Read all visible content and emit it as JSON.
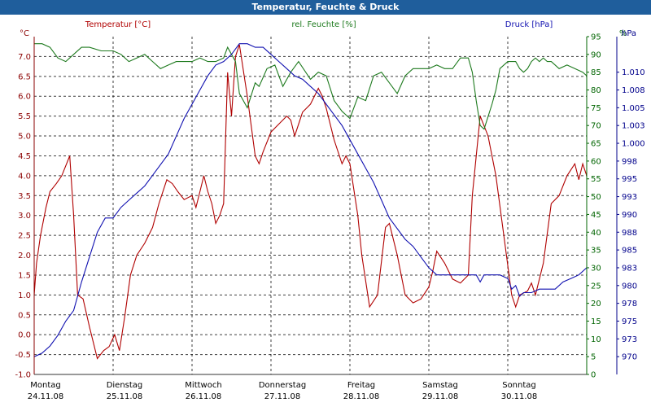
{
  "chart_data": {
    "type": "line",
    "title": "Temperatur, Feuchte & Druck",
    "x_labels": [
      {
        "day": "Montag",
        "date": "24.11.08"
      },
      {
        "day": "Dienstag",
        "date": "25.11.08"
      },
      {
        "day": "Mittwoch",
        "date": "26.11.08"
      },
      {
        "day": "Donnerstag",
        "date": "27.11.08"
      },
      {
        "day": "Freitag",
        "date": "28.11.08"
      },
      {
        "day": "Samstag",
        "date": "29.11.08"
      },
      {
        "day": "Sonntag",
        "date": "30.11.08"
      }
    ],
    "x_range_days": [
      0,
      7
    ],
    "grid": true,
    "axes": {
      "temperature": {
        "unit_label": "°C",
        "side": "left",
        "color": "#8b0000",
        "ylim": [
          -1.0,
          7.5
        ],
        "ticks": [
          "-1.0",
          "-0.5",
          "0.0",
          "0.5",
          "1.0",
          "1.5",
          "2.0",
          "2.5",
          "3.0",
          "3.5",
          "4.0",
          "4.5",
          "5.0",
          "5.5",
          "6.0",
          "6.5",
          "7.0"
        ]
      },
      "humidity": {
        "unit_label": "%",
        "side": "right-inner",
        "color": "#006400",
        "ylim": [
          0,
          95
        ],
        "ticks": [
          "0",
          "5",
          "10",
          "15",
          "20",
          "25",
          "30",
          "35",
          "40",
          "45",
          "50",
          "55",
          "60",
          "65",
          "70",
          "75",
          "80",
          "85",
          "90",
          "95"
        ]
      },
      "pressure": {
        "unit_label": "hPa",
        "side": "right-outer",
        "color": "#00008b",
        "ticks": [
          {
            "label": "970",
            "h": 5
          },
          {
            "label": "973",
            "h": 10
          },
          {
            "label": "975",
            "h": 15
          },
          {
            "label": "978",
            "h": 20
          },
          {
            "label": "980",
            "h": 25
          },
          {
            "label": "983",
            "h": 30
          },
          {
            "label": "985",
            "h": 35
          },
          {
            "label": "988",
            "h": 40
          },
          {
            "label": "990",
            "h": 45
          },
          {
            "label": "993",
            "h": 50
          },
          {
            "label": "995",
            "h": 55
          },
          {
            "label": "998",
            "h": 60
          },
          {
            "label": "1.000",
            "h": 65
          },
          {
            "label": "1.003",
            "h": 70
          },
          {
            "label": "1.005",
            "h": 75
          },
          {
            "label": "1.008",
            "h": 80
          },
          {
            "label": "1.010",
            "h": 85
          }
        ]
      }
    },
    "series": [
      {
        "name": "Temperatur [°C]",
        "axis": "temperature",
        "color": "#b00000",
        "points": [
          [
            0,
            1.0
          ],
          [
            0.03,
            1.8
          ],
          [
            0.08,
            2.5
          ],
          [
            0.15,
            3.2
          ],
          [
            0.2,
            3.6
          ],
          [
            0.28,
            3.8
          ],
          [
            0.35,
            4.0
          ],
          [
            0.45,
            4.5
          ],
          [
            0.5,
            3.0
          ],
          [
            0.55,
            1.0
          ],
          [
            0.62,
            0.9
          ],
          [
            0.7,
            0.2
          ],
          [
            0.8,
            -0.6
          ],
          [
            0.88,
            -0.4
          ],
          [
            0.95,
            -0.3
          ],
          [
            1.02,
            0.0
          ],
          [
            1.08,
            -0.4
          ],
          [
            1.15,
            0.5
          ],
          [
            1.22,
            1.5
          ],
          [
            1.3,
            2.0
          ],
          [
            1.4,
            2.3
          ],
          [
            1.5,
            2.7
          ],
          [
            1.58,
            3.3
          ],
          [
            1.68,
            3.9
          ],
          [
            1.75,
            3.8
          ],
          [
            1.82,
            3.6
          ],
          [
            1.9,
            3.4
          ],
          [
            2.0,
            3.5
          ],
          [
            2.05,
            3.2
          ],
          [
            2.1,
            3.6
          ],
          [
            2.15,
            4.0
          ],
          [
            2.2,
            3.6
          ],
          [
            2.25,
            3.3
          ],
          [
            2.3,
            2.8
          ],
          [
            2.35,
            3.0
          ],
          [
            2.4,
            3.3
          ],
          [
            2.45,
            6.6
          ],
          [
            2.5,
            5.5
          ],
          [
            2.55,
            7.0
          ],
          [
            2.6,
            7.3
          ],
          [
            2.7,
            6.0
          ],
          [
            2.8,
            4.5
          ],
          [
            2.85,
            4.3
          ],
          [
            2.9,
            4.6
          ],
          [
            3.0,
            5.1
          ],
          [
            3.1,
            5.3
          ],
          [
            3.2,
            5.5
          ],
          [
            3.25,
            5.4
          ],
          [
            3.3,
            5.0
          ],
          [
            3.4,
            5.6
          ],
          [
            3.5,
            5.8
          ],
          [
            3.6,
            6.2
          ],
          [
            3.65,
            6.0
          ],
          [
            3.7,
            5.7
          ],
          [
            3.8,
            4.9
          ],
          [
            3.9,
            4.3
          ],
          [
            3.95,
            4.5
          ],
          [
            4.0,
            4.3
          ],
          [
            4.1,
            3.0
          ],
          [
            4.15,
            2.0
          ],
          [
            4.25,
            0.7
          ],
          [
            4.35,
            1.0
          ],
          [
            4.45,
            2.7
          ],
          [
            4.5,
            2.8
          ],
          [
            4.6,
            2.0
          ],
          [
            4.7,
            1.0
          ],
          [
            4.8,
            0.8
          ],
          [
            4.9,
            0.9
          ],
          [
            5.0,
            1.2
          ],
          [
            5.05,
            1.6
          ],
          [
            5.1,
            2.1
          ],
          [
            5.2,
            1.8
          ],
          [
            5.3,
            1.4
          ],
          [
            5.4,
            1.3
          ],
          [
            5.5,
            1.5
          ],
          [
            5.55,
            3.5
          ],
          [
            5.65,
            5.5
          ],
          [
            5.75,
            5.0
          ],
          [
            5.85,
            4.0
          ],
          [
            5.95,
            2.5
          ],
          [
            6.05,
            1.0
          ],
          [
            6.1,
            0.7
          ],
          [
            6.15,
            1.0
          ],
          [
            6.25,
            1.1
          ],
          [
            6.3,
            1.3
          ],
          [
            6.35,
            1.0
          ],
          [
            6.45,
            1.8
          ],
          [
            6.55,
            3.3
          ],
          [
            6.65,
            3.5
          ],
          [
            6.75,
            4.0
          ],
          [
            6.85,
            4.3
          ],
          [
            6.9,
            3.9
          ],
          [
            6.95,
            4.3
          ],
          [
            7.0,
            4.0
          ]
        ]
      },
      {
        "name": "rel. Feuchte [%]",
        "axis": "humidity",
        "color": "#1e7a1e",
        "points": [
          [
            0,
            93
          ],
          [
            0.1,
            93
          ],
          [
            0.2,
            92
          ],
          [
            0.3,
            89
          ],
          [
            0.4,
            88
          ],
          [
            0.5,
            90
          ],
          [
            0.6,
            92
          ],
          [
            0.7,
            92
          ],
          [
            0.85,
            91
          ],
          [
            1.0,
            91
          ],
          [
            1.1,
            90
          ],
          [
            1.2,
            88
          ],
          [
            1.3,
            89
          ],
          [
            1.4,
            90
          ],
          [
            1.5,
            88
          ],
          [
            1.6,
            86
          ],
          [
            1.7,
            87
          ],
          [
            1.8,
            88
          ],
          [
            1.9,
            88
          ],
          [
            2.0,
            88
          ],
          [
            2.1,
            89
          ],
          [
            2.2,
            88
          ],
          [
            2.3,
            88
          ],
          [
            2.4,
            89
          ],
          [
            2.45,
            92
          ],
          [
            2.5,
            90
          ],
          [
            2.55,
            88
          ],
          [
            2.6,
            79
          ],
          [
            2.7,
            75
          ],
          [
            2.8,
            82
          ],
          [
            2.85,
            81
          ],
          [
            2.95,
            86
          ],
          [
            3.05,
            87
          ],
          [
            3.15,
            81
          ],
          [
            3.25,
            85
          ],
          [
            3.35,
            88
          ],
          [
            3.5,
            83
          ],
          [
            3.6,
            85
          ],
          [
            3.7,
            84
          ],
          [
            3.8,
            77
          ],
          [
            3.9,
            74
          ],
          [
            3.95,
            73
          ],
          [
            4.0,
            72
          ],
          [
            4.1,
            78
          ],
          [
            4.2,
            77
          ],
          [
            4.3,
            84
          ],
          [
            4.4,
            85
          ],
          [
            4.5,
            82
          ],
          [
            4.6,
            79
          ],
          [
            4.7,
            84
          ],
          [
            4.8,
            86
          ],
          [
            4.9,
            86
          ],
          [
            5.0,
            86
          ],
          [
            5.1,
            87
          ],
          [
            5.2,
            86
          ],
          [
            5.3,
            86
          ],
          [
            5.4,
            89
          ],
          [
            5.5,
            89
          ],
          [
            5.55,
            85
          ],
          [
            5.6,
            77
          ],
          [
            5.65,
            70
          ],
          [
            5.7,
            69
          ],
          [
            5.8,
            76
          ],
          [
            5.85,
            80
          ],
          [
            5.9,
            86
          ],
          [
            6.0,
            88
          ],
          [
            6.1,
            88
          ],
          [
            6.15,
            86
          ],
          [
            6.2,
            85
          ],
          [
            6.25,
            86
          ],
          [
            6.3,
            88
          ],
          [
            6.35,
            89
          ],
          [
            6.4,
            88
          ],
          [
            6.45,
            89
          ],
          [
            6.5,
            88
          ],
          [
            6.55,
            88
          ],
          [
            6.65,
            86
          ],
          [
            6.75,
            87
          ],
          [
            6.85,
            86
          ],
          [
            6.95,
            85
          ],
          [
            7.0,
            84
          ]
        ]
      },
      {
        "name": "Druck [hPa]",
        "axis": "pressure",
        "color": "#1010b0",
        "axis_scale": "humidity",
        "points": [
          [
            0,
            5
          ],
          [
            0.1,
            6
          ],
          [
            0.2,
            8
          ],
          [
            0.3,
            11
          ],
          [
            0.4,
            15
          ],
          [
            0.5,
            18
          ],
          [
            0.6,
            26
          ],
          [
            0.7,
            33
          ],
          [
            0.8,
            40
          ],
          [
            0.9,
            44
          ],
          [
            1.0,
            44
          ],
          [
            1.1,
            47
          ],
          [
            1.2,
            49
          ],
          [
            1.3,
            51
          ],
          [
            1.4,
            53
          ],
          [
            1.5,
            56
          ],
          [
            1.6,
            59
          ],
          [
            1.7,
            62
          ],
          [
            1.8,
            67
          ],
          [
            1.9,
            72
          ],
          [
            2.0,
            76
          ],
          [
            2.1,
            80
          ],
          [
            2.2,
            84
          ],
          [
            2.3,
            87
          ],
          [
            2.4,
            88
          ],
          [
            2.5,
            90
          ],
          [
            2.6,
            93
          ],
          [
            2.7,
            93
          ],
          [
            2.8,
            92
          ],
          [
            2.9,
            92
          ],
          [
            3.0,
            90
          ],
          [
            3.1,
            88
          ],
          [
            3.2,
            86
          ],
          [
            3.3,
            84
          ],
          [
            3.4,
            83
          ],
          [
            3.5,
            81
          ],
          [
            3.6,
            79
          ],
          [
            3.7,
            76
          ],
          [
            3.8,
            73
          ],
          [
            3.9,
            70
          ],
          [
            4.0,
            66
          ],
          [
            4.1,
            62
          ],
          [
            4.2,
            58
          ],
          [
            4.3,
            54
          ],
          [
            4.4,
            49
          ],
          [
            4.5,
            44
          ],
          [
            4.6,
            41
          ],
          [
            4.7,
            38
          ],
          [
            4.8,
            36
          ],
          [
            4.9,
            33
          ],
          [
            5.0,
            30
          ],
          [
            5.1,
            28
          ],
          [
            5.2,
            28
          ],
          [
            5.3,
            28
          ],
          [
            5.4,
            28
          ],
          [
            5.5,
            28
          ],
          [
            5.6,
            28
          ],
          [
            5.65,
            26
          ],
          [
            5.7,
            28
          ],
          [
            5.8,
            28
          ],
          [
            5.9,
            28
          ],
          [
            6.0,
            27
          ],
          [
            6.05,
            24
          ],
          [
            6.1,
            25
          ],
          [
            6.15,
            22
          ],
          [
            6.2,
            23
          ],
          [
            6.3,
            23
          ],
          [
            6.4,
            24
          ],
          [
            6.5,
            24
          ],
          [
            6.6,
            24
          ],
          [
            6.7,
            26
          ],
          [
            6.8,
            27
          ],
          [
            6.9,
            28
          ],
          [
            7.0,
            30
          ]
        ]
      }
    ]
  }
}
